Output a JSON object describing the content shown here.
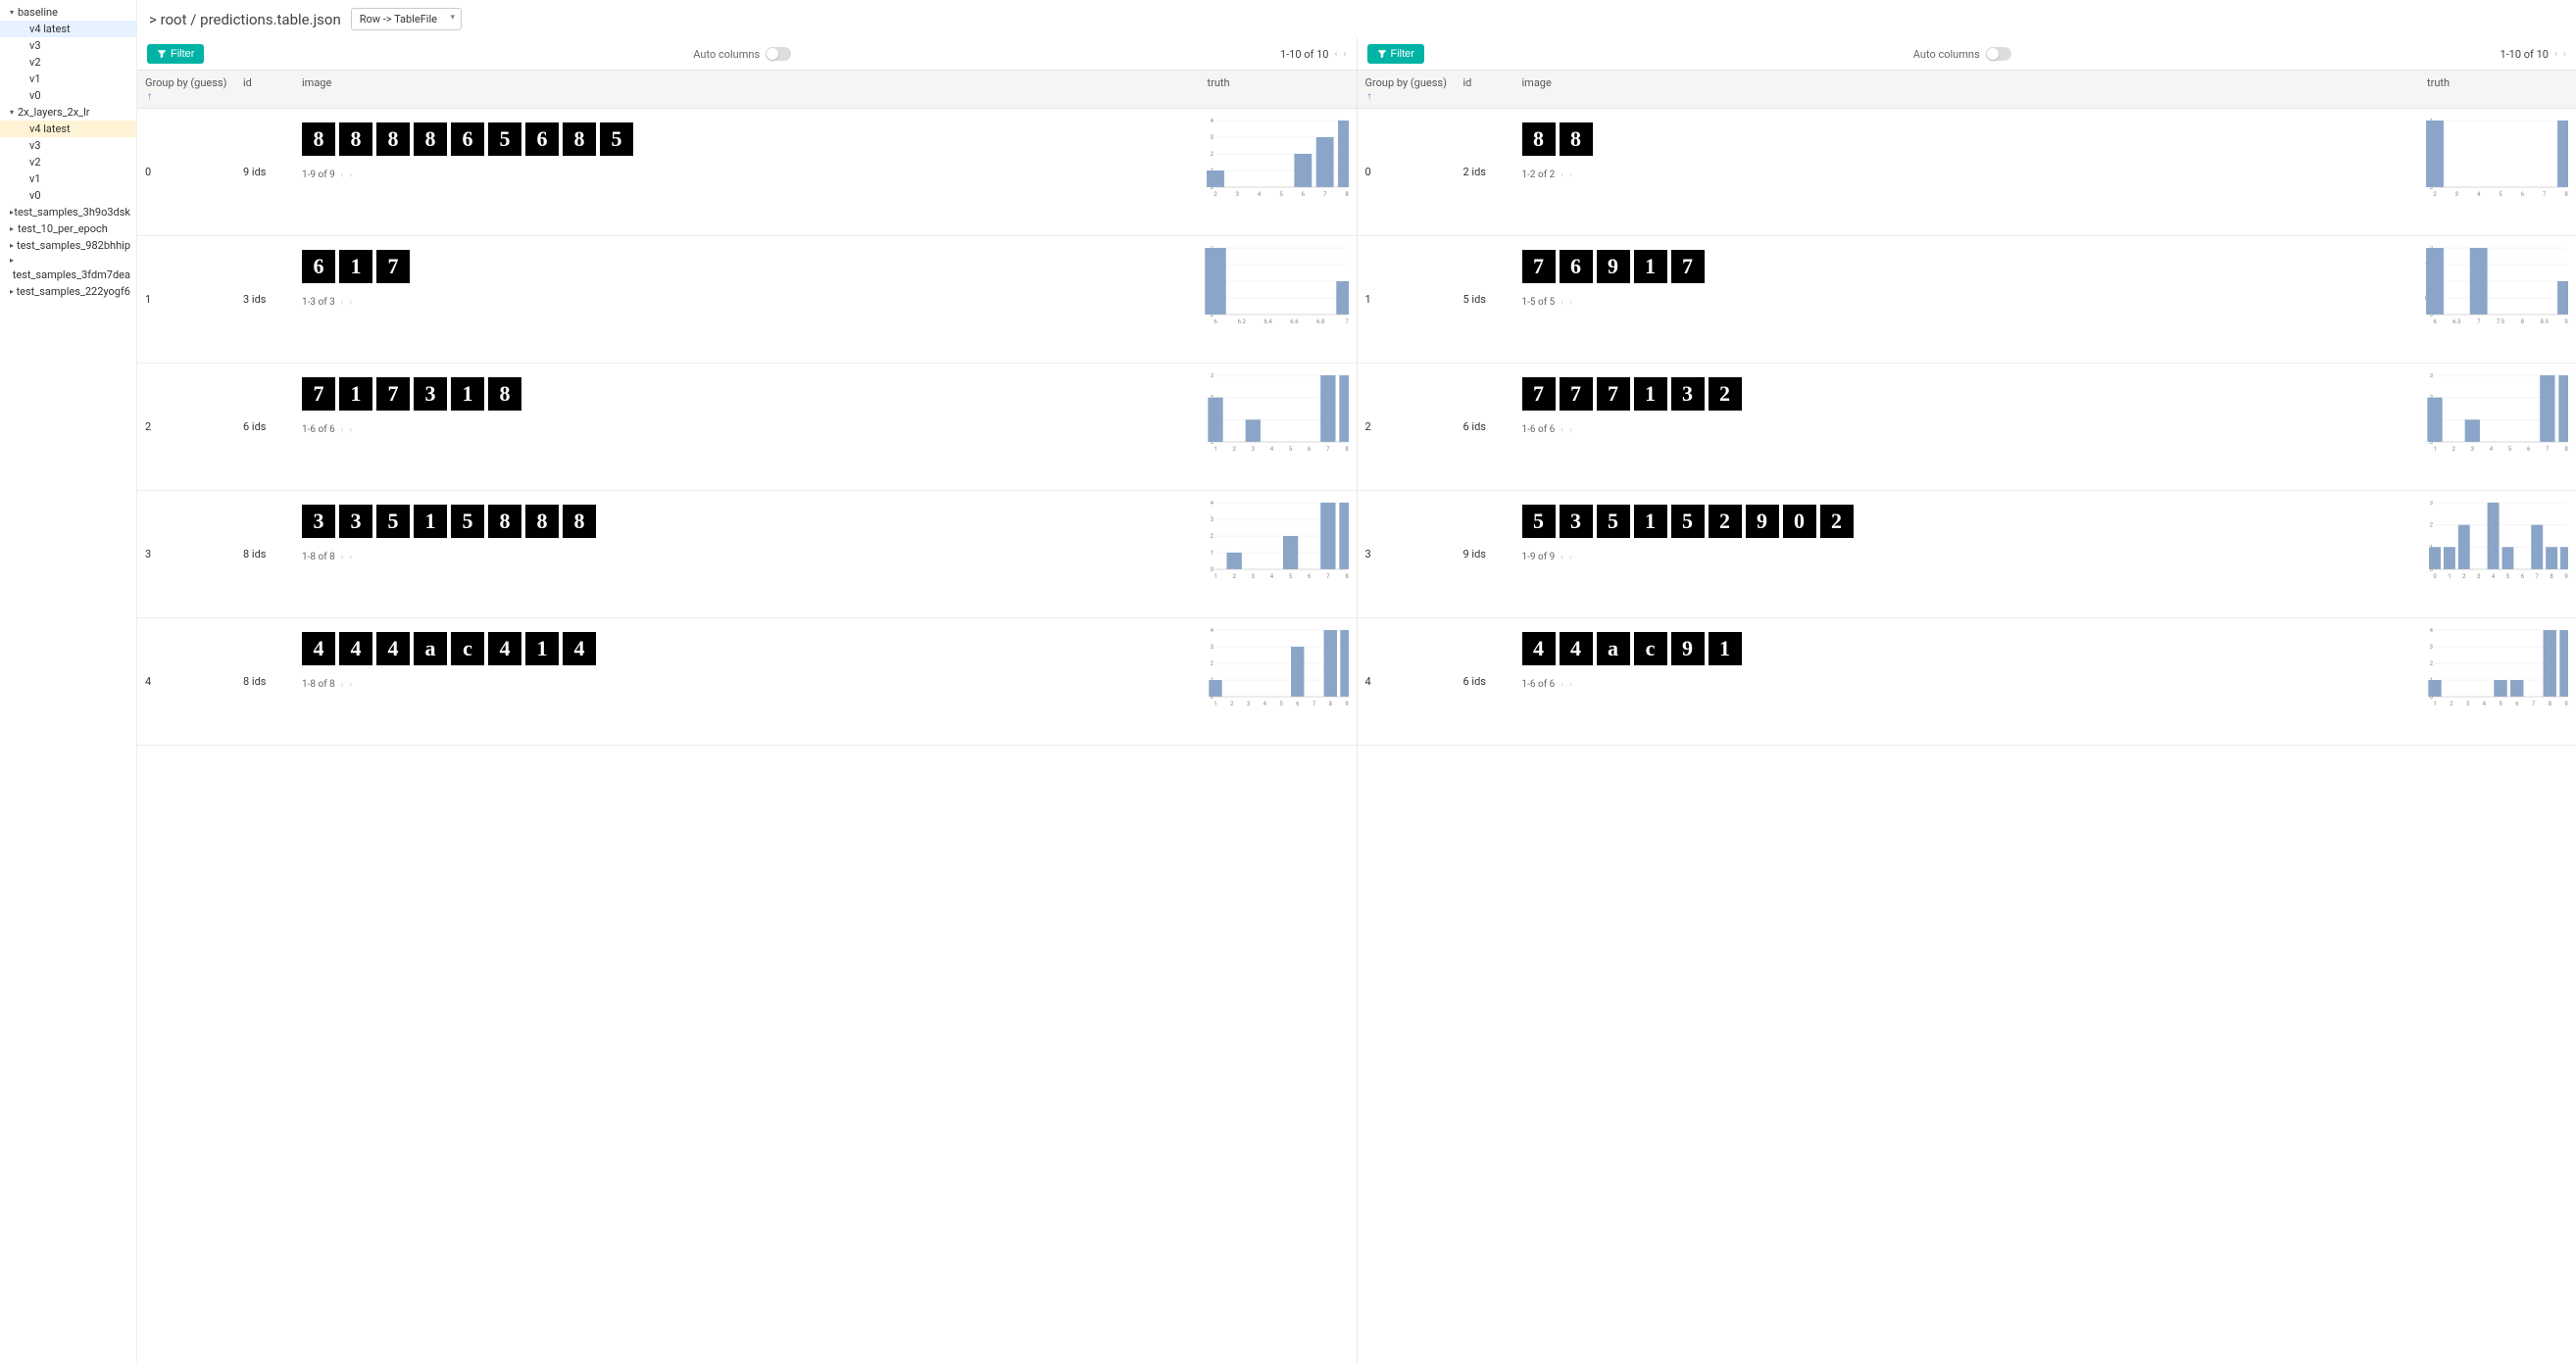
{
  "colors": {
    "accent": "#00b3a4",
    "bar_fill": "#8aa5c8",
    "sort_arrow": "#2e7cd6",
    "sidebar_sel_blue": "#e6f2ff",
    "sidebar_sel_yellow": "#fff3d6",
    "grid": "#e8e8e8",
    "axis": "#bbb"
  },
  "sidebar": {
    "items": [
      {
        "label": "baseline",
        "depth": 1,
        "caret": "▾"
      },
      {
        "label": "v4 latest",
        "depth": 2,
        "sel": "blue"
      },
      {
        "label": "v3",
        "depth": 2
      },
      {
        "label": "v2",
        "depth": 2
      },
      {
        "label": "v1",
        "depth": 2
      },
      {
        "label": "v0",
        "depth": 2
      },
      {
        "label": "2x_layers_2x_lr",
        "depth": 1,
        "caret": "▾"
      },
      {
        "label": "v4 latest",
        "depth": 2,
        "sel": "yellow"
      },
      {
        "label": "v3",
        "depth": 2
      },
      {
        "label": "v2",
        "depth": 2
      },
      {
        "label": "v1",
        "depth": 2
      },
      {
        "label": "v0",
        "depth": 2
      },
      {
        "label": "test_samples_3h9o3dsk",
        "depth": 1,
        "caret": "▸"
      },
      {
        "label": "test_10_per_epoch",
        "depth": 1,
        "caret": "▸"
      },
      {
        "label": "test_samples_982bhhip",
        "depth": 1,
        "caret": "▸"
      },
      {
        "label": "",
        "depth": 1,
        "caret": "▸"
      },
      {
        "label": "test_samples_3fdm7dea",
        "depth": 1
      },
      {
        "label": "test_samples_222yogf6",
        "depth": 1,
        "caret": "▸"
      }
    ]
  },
  "breadcrumb": "> root / predictions.table.json",
  "dropdown": "Row -> TableFile",
  "toolbar": {
    "filter_label": "Filter",
    "auto_columns_label": "Auto columns",
    "pagination": "1-10 of 10"
  },
  "columns": {
    "group": "Group by (guess)",
    "id": "id",
    "image": "image",
    "truth": "truth"
  },
  "panels": [
    {
      "rows": [
        {
          "group": "0",
          "id": "9 ids",
          "thumbs": [
            "8",
            "8",
            "8",
            "8",
            "6",
            "5",
            "6",
            "8",
            "5"
          ],
          "mini": "1-9 of 9",
          "chart": {
            "xlim": [
              2,
              8
            ],
            "ylim": [
              0,
              4
            ],
            "xticks": [
              2,
              3,
              4,
              5,
              6,
              7,
              8
            ],
            "yticks": [
              0,
              1,
              2,
              3,
              4
            ],
            "bars": [
              {
                "x": 2,
                "h": 1
              },
              {
                "x": 6,
                "h": 2
              },
              {
                "x": 7,
                "h": 3
              },
              {
                "x": 8,
                "h": 4
              }
            ]
          }
        },
        {
          "group": "1",
          "id": "3 ids",
          "thumbs": [
            "6",
            "1",
            "7"
          ],
          "mini": "1-3 of 3",
          "chart": {
            "xlim": [
              6,
              7
            ],
            "ylim": [
              0,
              2
            ],
            "xticks": [
              6.0,
              6.2,
              6.4,
              6.6,
              6.8,
              7.0
            ],
            "yticks": [
              0,
              0.5,
              1.0,
              1.5,
              2.0
            ],
            "bars": [
              {
                "x": 6.0,
                "h": 2
              },
              {
                "x": 7.0,
                "h": 1
              }
            ]
          }
        },
        {
          "group": "2",
          "id": "6 ids",
          "thumbs": [
            "7",
            "1",
            "7",
            "3",
            "1",
            "8"
          ],
          "mini": "1-6 of 6",
          "chart": {
            "xlim": [
              1,
              8
            ],
            "ylim": [
              0,
              3
            ],
            "xticks": [
              1,
              2,
              3,
              4,
              5,
              6,
              7,
              8
            ],
            "yticks": [
              0,
              1,
              2,
              3
            ],
            "bars": [
              {
                "x": 1,
                "h": 2
              },
              {
                "x": 3,
                "h": 1
              },
              {
                "x": 7,
                "h": 3
              },
              {
                "x": 8,
                "h": 3
              }
            ]
          }
        },
        {
          "group": "3",
          "id": "8 ids",
          "thumbs": [
            "3",
            "3",
            "5",
            "1",
            "5",
            "8",
            "8",
            "8"
          ],
          "mini": "1-8 of 8",
          "chart": {
            "xlim": [
              1,
              8
            ],
            "ylim": [
              0,
              4
            ],
            "xticks": [
              1,
              2,
              3,
              4,
              5,
              6,
              7,
              8
            ],
            "yticks": [
              0,
              1,
              2,
              3,
              4
            ],
            "bars": [
              {
                "x": 2,
                "h": 1
              },
              {
                "x": 5,
                "h": 2
              },
              {
                "x": 7,
                "h": 4
              },
              {
                "x": 8,
                "h": 4
              }
            ]
          }
        },
        {
          "group": "4",
          "id": "8 ids",
          "thumbs": [
            "4",
            "4",
            "4",
            "a",
            "c",
            "4",
            "1",
            "4"
          ],
          "mini": "1-8 of 8",
          "chart": {
            "xlim": [
              1,
              9
            ],
            "ylim": [
              0,
              4
            ],
            "xticks": [
              1,
              2,
              3,
              4,
              5,
              6,
              7,
              8,
              9
            ],
            "yticks": [
              0,
              1,
              2,
              3,
              4
            ],
            "bars": [
              {
                "x": 1,
                "h": 1
              },
              {
                "x": 6,
                "h": 3
              },
              {
                "x": 8,
                "h": 4
              },
              {
                "x": 9,
                "h": 4
              }
            ]
          }
        }
      ]
    },
    {
      "rows": [
        {
          "group": "0",
          "id": "2 ids",
          "thumbs": [
            "8",
            "8"
          ],
          "mini": "1-2 of 2",
          "chart": {
            "xlim": [
              2,
              8
            ],
            "ylim": [
              0,
              1
            ],
            "xticks": [
              2,
              3,
              4,
              5,
              6,
              7,
              8
            ],
            "yticks": [
              0,
              1
            ],
            "bars": [
              {
                "x": 2,
                "h": 1
              },
              {
                "x": 8,
                "h": 1
              }
            ]
          }
        },
        {
          "group": "1",
          "id": "5 ids",
          "thumbs": [
            "7",
            "6",
            "9",
            "1",
            "7"
          ],
          "mini": "1-5 of 5",
          "chart": {
            "xlim": [
              6,
              9
            ],
            "ylim": [
              0,
              2
            ],
            "xticks": [
              6.0,
              6.5,
              7.0,
              7.5,
              8.0,
              8.5,
              9.0
            ],
            "yticks": [
              0,
              0.5,
              1.0,
              1.5,
              2.0
            ],
            "bars": [
              {
                "x": 6,
                "h": 2
              },
              {
                "x": 7,
                "h": 2
              },
              {
                "x": 9,
                "h": 1
              }
            ]
          }
        },
        {
          "group": "2",
          "id": "6 ids",
          "thumbs": [
            "7",
            "7",
            "7",
            "1",
            "3",
            "2"
          ],
          "mini": "1-6 of 6",
          "chart": {
            "xlim": [
              1,
              8
            ],
            "ylim": [
              0,
              3
            ],
            "xticks": [
              1,
              2,
              3,
              4,
              5,
              6,
              7,
              8
            ],
            "yticks": [
              0,
              1,
              2,
              3
            ],
            "bars": [
              {
                "x": 1,
                "h": 2
              },
              {
                "x": 3,
                "h": 1
              },
              {
                "x": 7,
                "h": 3
              },
              {
                "x": 8,
                "h": 3
              }
            ]
          }
        },
        {
          "group": "3",
          "id": "9 ids",
          "thumbs": [
            "5",
            "3",
            "5",
            "1",
            "5",
            "2",
            "9",
            "0",
            "2"
          ],
          "mini": "1-9 of 9",
          "chart": {
            "xlim": [
              0,
              9
            ],
            "ylim": [
              0,
              3
            ],
            "xticks": [
              0,
              1,
              2,
              3,
              4,
              5,
              6,
              7,
              8,
              9
            ],
            "yticks": [
              0,
              1,
              2,
              3
            ],
            "bars": [
              {
                "x": 0,
                "h": 1
              },
              {
                "x": 1,
                "h": 1
              },
              {
                "x": 2,
                "h": 2
              },
              {
                "x": 4,
                "h": 3
              },
              {
                "x": 5,
                "h": 1
              },
              {
                "x": 7,
                "h": 2
              },
              {
                "x": 8,
                "h": 1
              },
              {
                "x": 9,
                "h": 1
              }
            ]
          }
        },
        {
          "group": "4",
          "id": "6 ids",
          "thumbs": [
            "4",
            "4",
            "a",
            "c",
            "9",
            "1"
          ],
          "mini": "1-6 of 6",
          "chart": {
            "xlim": [
              1,
              9
            ],
            "ylim": [
              0,
              4
            ],
            "xticks": [
              1,
              2,
              3,
              4,
              5,
              6,
              7,
              8,
              9
            ],
            "yticks": [
              0,
              1,
              2,
              3,
              4
            ],
            "bars": [
              {
                "x": 1,
                "h": 1
              },
              {
                "x": 5,
                "h": 1
              },
              {
                "x": 6,
                "h": 1
              },
              {
                "x": 8,
                "h": 4
              },
              {
                "x": 9,
                "h": 4
              }
            ]
          }
        }
      ]
    }
  ]
}
